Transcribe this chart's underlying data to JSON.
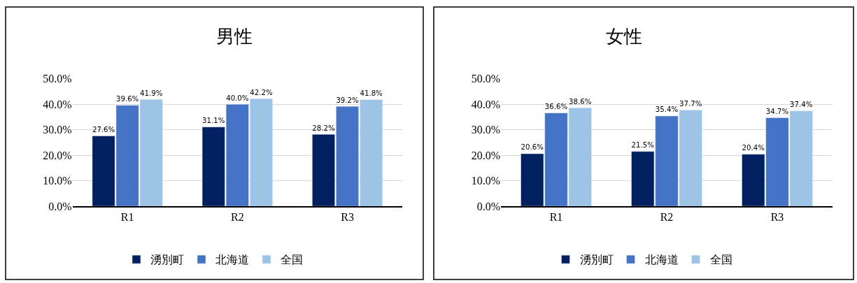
{
  "chart_data": [
    {
      "type": "bar",
      "title": "男性",
      "categories": [
        "R1",
        "R2",
        "R3"
      ],
      "series": [
        {
          "name": "湧別町",
          "color": "#002060",
          "values": [
            27.6,
            31.1,
            28.2
          ],
          "value_labels": [
            "27.6%",
            "31.1%",
            "28.2%"
          ]
        },
        {
          "name": "北海道",
          "color": "#4472c4",
          "values": [
            39.6,
            40.0,
            39.2
          ],
          "value_labels": [
            "39.6%",
            "40.0%",
            "39.2%"
          ]
        },
        {
          "name": "全国",
          "color": "#9dc3e6",
          "values": [
            41.9,
            42.2,
            41.8
          ],
          "value_labels": [
            "41.9%",
            "42.2%",
            "41.8%"
          ]
        }
      ],
      "ylim": [
        0,
        50
      ],
      "yticks": [
        {
          "value": 0,
          "label": "0.0%"
        },
        {
          "value": 10,
          "label": "10.0%"
        },
        {
          "value": 20,
          "label": "20.0%"
        },
        {
          "value": 30,
          "label": "30.0%"
        },
        {
          "value": 40,
          "label": "40.0%"
        },
        {
          "value": 50,
          "label": "50.0%"
        }
      ],
      "grid": "y",
      "legend": "bottom"
    },
    {
      "type": "bar",
      "title": "女性",
      "categories": [
        "R1",
        "R2",
        "R3"
      ],
      "series": [
        {
          "name": "湧別町",
          "color": "#002060",
          "values": [
            20.6,
            21.5,
            20.4
          ],
          "value_labels": [
            "20.6%",
            "21.5%",
            "20.4%"
          ]
        },
        {
          "name": "北海道",
          "color": "#4472c4",
          "values": [
            36.6,
            35.4,
            34.7
          ],
          "value_labels": [
            "36.6%",
            "35.4%",
            "34.7%"
          ]
        },
        {
          "name": "全国",
          "color": "#9dc3e6",
          "values": [
            38.6,
            37.7,
            37.4
          ],
          "value_labels": [
            "38.6%",
            "37.7%",
            "37.4%"
          ]
        }
      ],
      "ylim": [
        0,
        50
      ],
      "yticks": [
        {
          "value": 0,
          "label": "0.0%"
        },
        {
          "value": 10,
          "label": "10.0%"
        },
        {
          "value": 20,
          "label": "20.0%"
        },
        {
          "value": 30,
          "label": "30.0%"
        },
        {
          "value": 40,
          "label": "40.0%"
        },
        {
          "value": 50,
          "label": "50.0%"
        }
      ],
      "grid": "y",
      "legend": "bottom"
    }
  ]
}
